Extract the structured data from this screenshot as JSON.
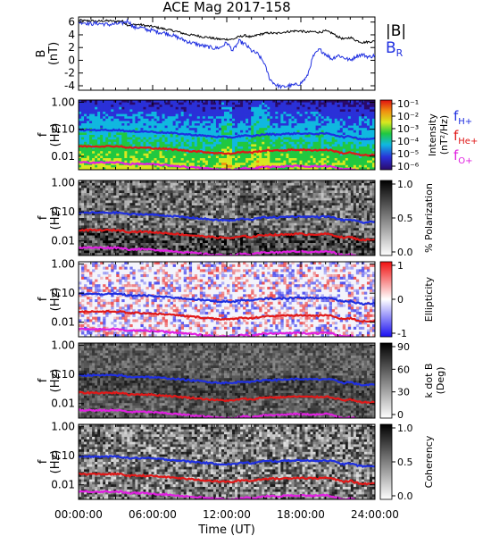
{
  "figure": {
    "title": "ACE Mag 2017-158",
    "xlabel": "Time (UT)",
    "xticks": [
      "00:00:00",
      "06:00:00",
      "12:00:00",
      "18:00:00",
      "24:00:00"
    ]
  },
  "chart_data": [
    {
      "type": "line",
      "panel": "field",
      "ylabel_top": "B",
      "ylabel_bottom": "(nT)",
      "yticks": [
        "6",
        "4",
        "2",
        "0",
        "-2",
        "-4"
      ],
      "ylim": [
        -4.7,
        6.8
      ],
      "xlim_hours": [
        0,
        24
      ],
      "series": [
        {
          "name": "|B|",
          "color": "#000000",
          "x_hours": [
            0,
            0.5,
            1,
            1.5,
            2,
            2.5,
            3,
            3.5,
            4,
            4.5,
            5,
            5.5,
            6,
            6.5,
            7,
            7.5,
            8,
            8.5,
            9,
            9.5,
            10,
            10.5,
            11,
            11.5,
            12,
            12.5,
            13,
            13.5,
            14,
            14.5,
            15,
            15.5,
            16,
            16.5,
            17,
            17.5,
            18,
            18.5,
            19,
            19.5,
            20,
            20.5,
            21,
            21.5,
            22,
            22.5,
            23,
            23.5,
            24
          ],
          "y": [
            6.3,
            6.2,
            6.2,
            6.1,
            6.2,
            6.2,
            6.1,
            6.2,
            5.5,
            5.6,
            5.6,
            5.4,
            5.3,
            5.1,
            4.9,
            4.7,
            4.5,
            4.2,
            4.0,
            3.9,
            3.7,
            3.6,
            3.4,
            3.3,
            3.3,
            3.3,
            3.7,
            3.9,
            3.6,
            4.0,
            4.2,
            4.3,
            4.2,
            4.4,
            4.5,
            4.6,
            4.6,
            4.4,
            4.5,
            4.4,
            4.6,
            4.3,
            3.7,
            3.3,
            3.6,
            3.1,
            2.8,
            2.9,
            3.0
          ]
        },
        {
          "name": "B",
          "sub": "R",
          "color": "#1f2fe0",
          "x_hours": [
            0,
            0.5,
            1,
            1.5,
            2,
            2.5,
            3,
            3.5,
            4,
            4.5,
            5,
            5.5,
            6,
            6.5,
            7,
            7.5,
            8,
            8.5,
            9,
            9.5,
            10,
            10.5,
            11,
            11.5,
            12,
            12.5,
            13,
            13.5,
            14,
            14.5,
            15,
            15.5,
            16,
            16.5,
            17,
            17.5,
            18,
            18.5,
            19,
            19.5,
            20,
            20.5,
            21,
            21.5,
            22,
            22.5,
            23,
            23.5,
            24
          ],
          "y": [
            6.0,
            5.9,
            5.7,
            5.8,
            5.7,
            5.6,
            5.7,
            5.8,
            6.2,
            5.1,
            5.2,
            4.8,
            4.7,
            4.4,
            4.3,
            4.0,
            3.6,
            3.2,
            2.8,
            2.6,
            2.3,
            2.1,
            1.9,
            2.0,
            2.8,
            1.5,
            3.0,
            2.5,
            1.5,
            1.0,
            -0.3,
            -3.0,
            -3.9,
            -4.2,
            -4.0,
            -3.9,
            -3.6,
            -2.6,
            0.6,
            1.7,
            1.0,
            0.2,
            0.8,
            0.4,
            0.0,
            0.7,
            0.9,
            0.5,
            0.8
          ]
        }
      ]
    },
    {
      "type": "heatmap",
      "panel": "spectral-intensity",
      "ylabel_top": "f",
      "ylabel_bottom": "(Hz)",
      "yticks": [
        "1.00",
        "0.10",
        "0.01"
      ],
      "ylim_log10": [
        -2.5,
        0.08
      ],
      "colorbar": {
        "label": "Intensity",
        "unit": "(nT²/Hz)",
        "ticks": [
          "10⁻¹",
          "10⁻²",
          "10⁻³",
          "10⁻⁴",
          "10⁻⁵",
          "10⁻⁶"
        ],
        "colormap": "rainbow"
      }
    },
    {
      "type": "heatmap",
      "panel": "polarization",
      "ylabel_top": "f",
      "ylabel_bottom": "(Hz)",
      "yticks": [
        "1.00",
        "0.10",
        "0.01"
      ],
      "colorbar": {
        "label": "% Polarization",
        "ticks": [
          "1.0",
          "0.5",
          "0.0"
        ],
        "colormap": "gray"
      }
    },
    {
      "type": "heatmap",
      "panel": "ellipticity",
      "ylabel_top": "f",
      "ylabel_bottom": "(Hz)",
      "yticks": [
        "1.00",
        "0.10",
        "0.01"
      ],
      "colorbar": {
        "label": "Ellipticity",
        "ticks": [
          "1",
          "0",
          "-1"
        ],
        "colormap": "blue-white-red"
      }
    },
    {
      "type": "heatmap",
      "panel": "wave-normal-angle",
      "ylabel_top": "f",
      "ylabel_bottom": "(Hz)",
      "yticks": [
        "1.00",
        "0.10",
        "0.01"
      ],
      "colorbar": {
        "label": "k dot B",
        "unit": "(Deg)",
        "ticks": [
          "90",
          "60",
          "30",
          "0"
        ],
        "colormap": "gray"
      }
    },
    {
      "type": "heatmap",
      "panel": "coherency",
      "ylabel_top": "f",
      "ylabel_bottom": "(Hz)",
      "yticks": [
        "1.00",
        "0.10",
        "0.01"
      ],
      "colorbar": {
        "label": "Coherency",
        "ticks": [
          "1.0",
          "0.5",
          "0.0"
        ],
        "colormap": "gray"
      }
    }
  ],
  "gyrofrequencies": {
    "x_hours": [
      0,
      0.5,
      1,
      1.5,
      2,
      2.5,
      3,
      3.5,
      4,
      4.5,
      5,
      5.5,
      6,
      6.5,
      7,
      7.5,
      8,
      8.5,
      9,
      9.5,
      10,
      10.5,
      11,
      11.5,
      12,
      12.5,
      13,
      13.5,
      14,
      14.5,
      15,
      15.5,
      16,
      16.5,
      17,
      17.5,
      18,
      18.5,
      19,
      19.5,
      20,
      20.5,
      21,
      21.5,
      22,
      22.5,
      23,
      23.5,
      24
    ],
    "fH_hz": [
      0.095,
      0.093,
      0.094,
      0.093,
      0.094,
      0.093,
      0.094,
      0.092,
      0.082,
      0.083,
      0.083,
      0.082,
      0.08,
      0.077,
      0.075,
      0.072,
      0.069,
      0.066,
      0.063,
      0.061,
      0.058,
      0.056,
      0.053,
      0.052,
      0.051,
      0.05,
      0.056,
      0.058,
      0.054,
      0.06,
      0.064,
      0.066,
      0.064,
      0.066,
      0.068,
      0.069,
      0.07,
      0.067,
      0.068,
      0.067,
      0.07,
      0.066,
      0.057,
      0.051,
      0.055,
      0.047,
      0.043,
      0.044,
      0.045
    ],
    "lines": [
      {
        "name": "f",
        "sub": "H+",
        "color": "#1f2fe0",
        "ratio": 1.0
      },
      {
        "name": "f",
        "sub": "He+",
        "color": "#e01818",
        "ratio": 0.25
      },
      {
        "name": "f",
        "sub": "O+",
        "color": "#e020e0",
        "ratio": 0.0625
      }
    ]
  }
}
